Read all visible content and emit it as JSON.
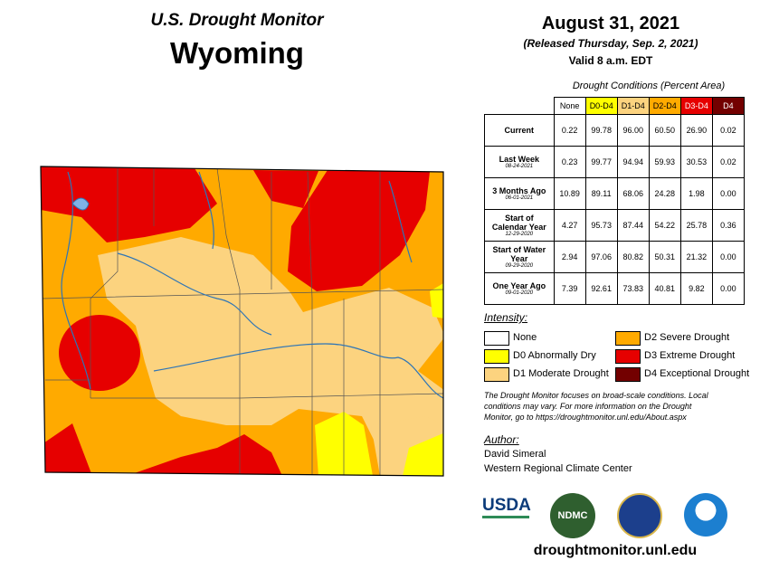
{
  "header": {
    "title": "U.S. Drought Monitor",
    "state": "Wyoming"
  },
  "release": {
    "date": "August 31, 2021",
    "released": "(Released Thursday, Sep. 2, 2021)",
    "valid": "Valid 8 a.m. EDT"
  },
  "table": {
    "caption": "Drought Conditions (Percent Area)",
    "columns": [
      {
        "label": "None",
        "color": "#ffffff",
        "text": "#000000"
      },
      {
        "label": "D0-D4",
        "color": "#ffff00",
        "text": "#000000"
      },
      {
        "label": "D1-D4",
        "color": "#fcd37f",
        "text": "#000000"
      },
      {
        "label": "D2-D4",
        "color": "#ffaa00",
        "text": "#000000"
      },
      {
        "label": "D3-D4",
        "color": "#e60000",
        "text": "#ffffff"
      },
      {
        "label": "D4",
        "color": "#730000",
        "text": "#ffffff"
      }
    ],
    "rows": [
      {
        "label": "Current",
        "values": [
          "0.22",
          "99.78",
          "96.00",
          "60.50",
          "26.90",
          "0.02"
        ]
      },
      {
        "label": "Last Week",
        "date": "08-24-2021",
        "values": [
          "0.23",
          "99.77",
          "94.94",
          "59.93",
          "30.53",
          "0.02"
        ]
      },
      {
        "label": "3 Months Ago",
        "date": "06-01-2021",
        "values": [
          "10.89",
          "89.11",
          "68.06",
          "24.28",
          "1.98",
          "0.00"
        ]
      },
      {
        "label": "Start of Calendar Year",
        "date": "12-29-2020",
        "values": [
          "4.27",
          "95.73",
          "87.44",
          "54.22",
          "25.78",
          "0.36"
        ]
      },
      {
        "label": "Start of Water Year",
        "date": "09-29-2020",
        "values": [
          "2.94",
          "97.06",
          "80.82",
          "50.31",
          "21.32",
          "0.00"
        ]
      },
      {
        "label": "One Year Ago",
        "date": "09-01-2020",
        "values": [
          "7.39",
          "92.61",
          "73.83",
          "40.81",
          "9.82",
          "0.00"
        ]
      }
    ]
  },
  "legend": {
    "title": "Intensity:",
    "items": [
      {
        "label": "None",
        "color": "#ffffff"
      },
      {
        "label": "D0 Abnormally Dry",
        "color": "#ffff00"
      },
      {
        "label": "D1 Moderate Drought",
        "color": "#fcd37f"
      },
      {
        "label": "D2 Severe Drought",
        "color": "#ffaa00"
      },
      {
        "label": "D3 Extreme Drought",
        "color": "#e60000"
      },
      {
        "label": "D4 Exceptional Drought",
        "color": "#730000"
      }
    ]
  },
  "note": "The Drought Monitor focuses on broad-scale conditions. Local conditions may vary. For more information on the Drought Monitor, go to https://droughtmonitor.unl.edu/About.aspx",
  "author": {
    "title": "Author:",
    "name": "David Simeral",
    "org": "Western Regional Climate Center"
  },
  "logos": [
    "USDA",
    "NDMC"
  ],
  "footer": "droughtmonitor.unl.edu"
}
